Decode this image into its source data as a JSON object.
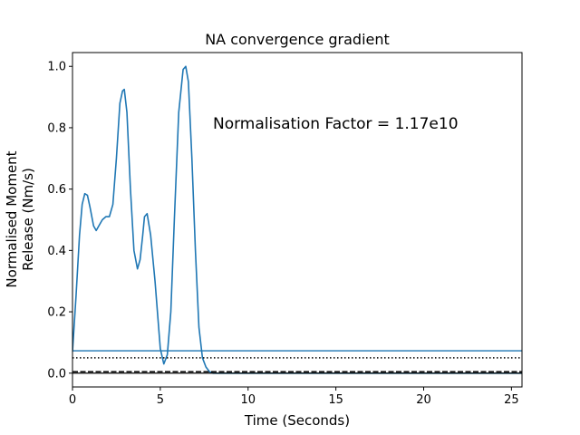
{
  "chart_data": {
    "type": "line",
    "title": "NA convergence gradient",
    "xlabel": "Time (Seconds)",
    "ylabel_lines": [
      "Normalised Moment",
      "Release (Nm/s)"
    ],
    "annotation": "Normalisation Factor = 1.17e10",
    "xlim": [
      0,
      25.6
    ],
    "ylim": [
      -0.045,
      1.045
    ],
    "xticks": [
      0,
      5,
      10,
      15,
      20,
      25
    ],
    "xtick_labels": [
      "0",
      "5",
      "10",
      "15",
      "20",
      "25"
    ],
    "yticks": [
      0.0,
      0.2,
      0.4,
      0.6,
      0.8,
      1.0
    ],
    "ytick_labels": [
      "0.0",
      "0.2",
      "0.4",
      "0.6",
      "0.8",
      "1.0"
    ],
    "grid": false,
    "series": [
      {
        "color": "#1f77b4",
        "style": "solid",
        "x": [
          0,
          0.2,
          0.4,
          0.55,
          0.7,
          0.85,
          1.0,
          1.2,
          1.35,
          1.5,
          1.7,
          1.9,
          2.1,
          2.3,
          2.5,
          2.7,
          2.85,
          2.95,
          3.1,
          3.3,
          3.5,
          3.7,
          3.85,
          4.0,
          4.1,
          4.25,
          4.45,
          4.7,
          5.0,
          5.2,
          5.4,
          5.6,
          5.8,
          6.05,
          6.3,
          6.45,
          6.6,
          6.8,
          7.0,
          7.2,
          7.4,
          7.6,
          7.8,
          8.0,
          9.0,
          12.0,
          16.0,
          20.0,
          25.6
        ],
        "y": [
          0.07,
          0.25,
          0.45,
          0.55,
          0.585,
          0.58,
          0.54,
          0.48,
          0.465,
          0.48,
          0.5,
          0.51,
          0.51,
          0.55,
          0.7,
          0.88,
          0.92,
          0.925,
          0.85,
          0.6,
          0.4,
          0.34,
          0.37,
          0.45,
          0.51,
          0.52,
          0.45,
          0.3,
          0.08,
          0.03,
          0.06,
          0.2,
          0.5,
          0.85,
          0.99,
          1.0,
          0.95,
          0.7,
          0.4,
          0.15,
          0.05,
          0.02,
          0.005,
          0.0,
          0.0,
          0.0,
          0.0,
          0.0,
          0.0
        ]
      },
      {
        "color": "#1f77b4",
        "style": "solid",
        "x": [
          0,
          25.6
        ],
        "y": [
          0.073,
          0.073
        ]
      },
      {
        "color": "#000000",
        "style": "dotted",
        "x": [
          0,
          25.6
        ],
        "y": [
          0.05,
          0.05
        ]
      },
      {
        "color": "#000000",
        "style": "dashed",
        "x": [
          0,
          25.6
        ],
        "y": [
          0.005,
          0.005
        ]
      },
      {
        "color": "#000000",
        "style": "solid",
        "x": [
          0,
          25.6
        ],
        "y": [
          0.0,
          0.0
        ]
      }
    ]
  }
}
